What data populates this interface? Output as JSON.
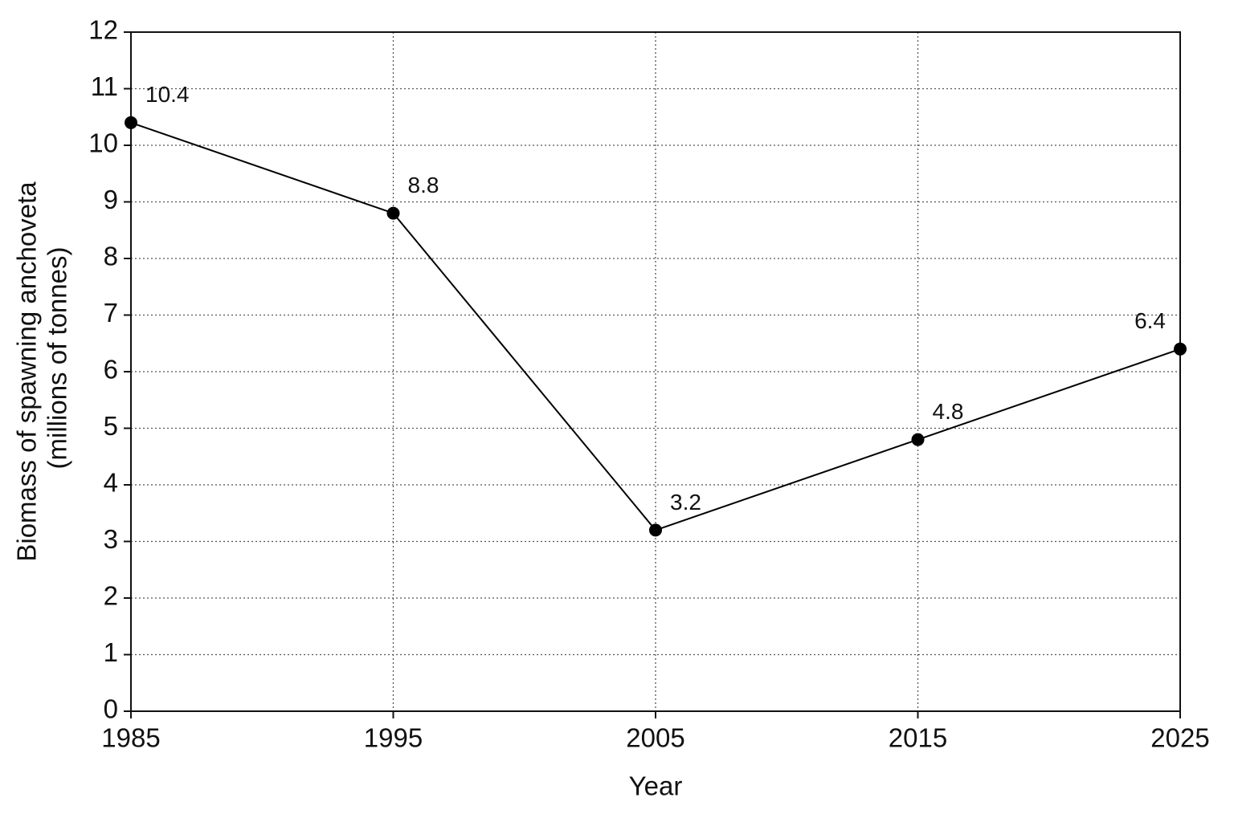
{
  "chart_data": {
    "type": "line",
    "xlabel": "Year",
    "ylabel": [
      "Biomass of spawning anchoveta",
      "(millions of tonnes)"
    ],
    "x": [
      1985,
      1995,
      2005,
      2015,
      2025
    ],
    "series": [
      {
        "color": "#000000",
        "values": [
          10.4,
          8.8,
          3.2,
          4.8,
          6.4
        ]
      }
    ],
    "xlim": [
      1985,
      2025
    ],
    "xticks": [
      1985,
      1995,
      2005,
      2015,
      2025
    ],
    "ylim": [
      0,
      12
    ],
    "yticks": [
      0,
      1,
      2,
      3,
      4,
      5,
      6,
      7,
      8,
      9,
      10,
      11,
      12
    ],
    "grid": true,
    "data_labels": true
  }
}
